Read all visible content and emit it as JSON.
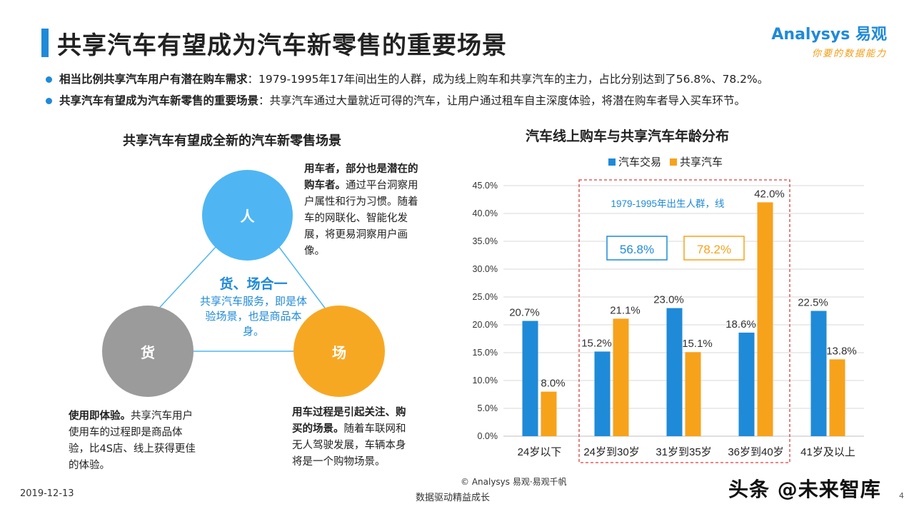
{
  "header": {
    "title": "共享汽车有望成为汽车新零售的重要场景",
    "brand_name": "Analysys 易观",
    "brand_slogan": "你要的数据能力"
  },
  "bullets": [
    {
      "bold": "相当比例共享汽车用户有潜在购车需求",
      "text": "：1979-1995年17年间出生的人群，成为线上购车和共享汽车的主力，占比分别达到了56.8%、78.2%。"
    },
    {
      "bold": "共享汽车有望成为汽车新零售的重要场景",
      "text": "：共享汽车通过大量就近可得的汽车，让用户通过租车自主深度体验，将潜在购车者导入买车环节。"
    }
  ],
  "diagram": {
    "title": "共享汽车有望成全新的汽车新零售场景",
    "nodes": {
      "ren": "人",
      "huo": "货",
      "chang": "场"
    },
    "center_head": "货、场合一",
    "center_body": "共享汽车服务，即是体验场景，也是商品本身。",
    "note_ren_bold": "用车者，部分也是潜在的购车者。",
    "note_ren_text": "通过平台洞察用户属性和行为习惯。随着车的网联化、智能化发展，将更易洞察用户画像。",
    "note_huo_bold": "使用即体验。",
    "note_huo_text": "共享汽车用户使用车的过程即是商品体验，比4S店、线上获得更佳的体验。",
    "note_chang_bold": "用车过程是引起关注、购买的场景。",
    "note_chang_text": "随着车联网和无人驾驶发展，车辆本身将是一个购物场景。"
  },
  "chart_data": {
    "type": "bar",
    "title": "汽车线上购车与共享汽车年龄分布",
    "categories": [
      "24岁以下",
      "24岁到30岁",
      "31岁到35岁",
      "36岁到40岁",
      "41岁及以上"
    ],
    "series": [
      {
        "name": "汽车交易",
        "color": "#1f8ad8",
        "values": [
          20.7,
          15.2,
          23.0,
          18.6,
          22.5
        ]
      },
      {
        "name": "共享汽车",
        "color": "#f7a21b",
        "values": [
          8.0,
          21.1,
          15.1,
          42.0,
          13.8
        ]
      }
    ],
    "ylim": [
      0,
      45
    ],
    "yticks": [
      0,
      5,
      10,
      15,
      20,
      25,
      30,
      35,
      40,
      45
    ],
    "ytick_format": "percent_1dp",
    "grid": true,
    "legend": "top",
    "highlight": {
      "label": "1979-1995年出生人群，线",
      "range": [
        "24岁到30岁",
        "36岁到40岁"
      ],
      "box1": "56.8%",
      "box2": "78.2%"
    }
  },
  "footer": {
    "date": "2019-12-13",
    "tagline": "数据驱动精益成长",
    "copyright": "© Analysys 易观·易观千帆",
    "watermark": "头条 @未来智库",
    "page": "4"
  }
}
